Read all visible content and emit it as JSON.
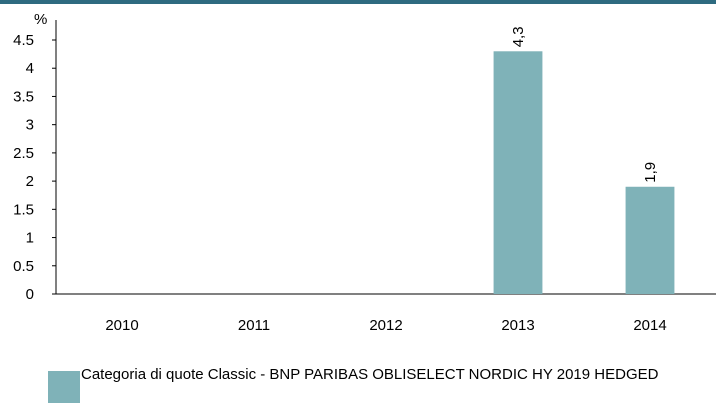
{
  "chart_data": {
    "type": "bar",
    "unit": "%",
    "categories": [
      "2010",
      "2011",
      "2012",
      "2013",
      "2014"
    ],
    "series": [
      {
        "name": "Categoria di quote Classic - BNP PARIBAS OBLISELECT NORDIC HY 2019 HEDGED",
        "values": [
          null,
          null,
          null,
          4.3,
          1.9
        ],
        "data_labels": [
          "",
          "",
          "",
          "4,3",
          "1,9"
        ],
        "color": "#7fb2b8"
      }
    ],
    "y_ticks": [
      "0",
      "0.5",
      "1",
      "1.5",
      "2",
      "2.5",
      "3",
      "3.5",
      "4",
      "4.5"
    ],
    "y_tick_values": [
      0,
      0.5,
      1,
      1.5,
      2,
      2.5,
      3,
      3.5,
      4,
      4.5
    ],
    "ylim": [
      0,
      4.5
    ],
    "grid": false,
    "legend_position": "bottom-left",
    "top_rule_color": "#2e6b80"
  }
}
